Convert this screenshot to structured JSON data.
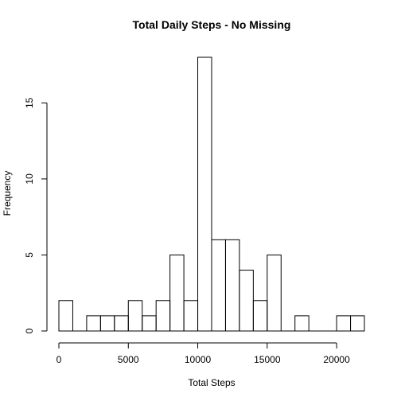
{
  "chart_data": {
    "type": "bar",
    "title": "Total Daily Steps - No Missing",
    "xlabel": "Total Steps",
    "ylabel": "Frequency",
    "bin_width": 1000,
    "bins": [
      {
        "x0": 0,
        "x1": 1000,
        "count": 2
      },
      {
        "x0": 1000,
        "x1": 2000,
        "count": 0
      },
      {
        "x0": 2000,
        "x1": 3000,
        "count": 1
      },
      {
        "x0": 3000,
        "x1": 4000,
        "count": 1
      },
      {
        "x0": 4000,
        "x1": 5000,
        "count": 1
      },
      {
        "x0": 5000,
        "x1": 6000,
        "count": 2
      },
      {
        "x0": 6000,
        "x1": 7000,
        "count": 1
      },
      {
        "x0": 7000,
        "x1": 8000,
        "count": 2
      },
      {
        "x0": 8000,
        "x1": 9000,
        "count": 5
      },
      {
        "x0": 9000,
        "x1": 10000,
        "count": 2
      },
      {
        "x0": 10000,
        "x1": 11000,
        "count": 18
      },
      {
        "x0": 11000,
        "x1": 12000,
        "count": 6
      },
      {
        "x0": 12000,
        "x1": 13000,
        "count": 6
      },
      {
        "x0": 13000,
        "x1": 14000,
        "count": 4
      },
      {
        "x0": 14000,
        "x1": 15000,
        "count": 2
      },
      {
        "x0": 15000,
        "x1": 16000,
        "count": 5
      },
      {
        "x0": 16000,
        "x1": 17000,
        "count": 0
      },
      {
        "x0": 17000,
        "x1": 18000,
        "count": 1
      },
      {
        "x0": 18000,
        "x1": 19000,
        "count": 0
      },
      {
        "x0": 19000,
        "x1": 20000,
        "count": 0
      },
      {
        "x0": 20000,
        "x1": 21000,
        "count": 1
      },
      {
        "x0": 21000,
        "x1": 22000,
        "count": 1
      }
    ],
    "xlim": [
      0,
      22000
    ],
    "ylim": [
      0,
      18
    ],
    "x_ticks": [
      "0",
      "5000",
      "10000",
      "15000",
      "20000"
    ],
    "y_ticks": [
      "0",
      "5",
      "10",
      "15"
    ],
    "grid": false,
    "legend": "none"
  }
}
